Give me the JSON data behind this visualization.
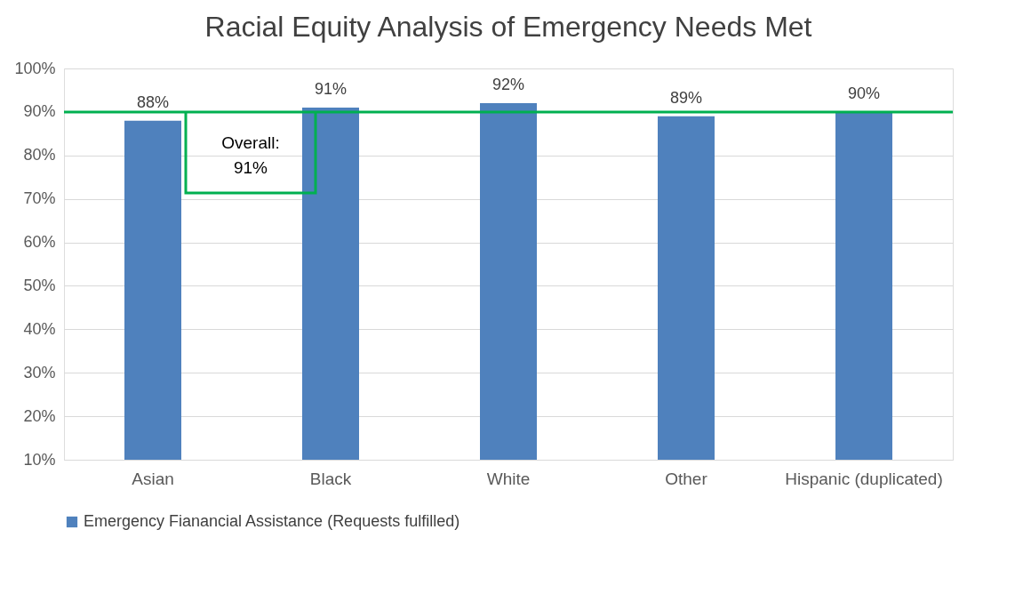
{
  "chart_data": {
    "type": "bar",
    "title": "Racial Equity Analysis of Emergency Needs Met",
    "categories": [
      "Asian",
      "Black",
      "White",
      "Other",
      "Hispanic (duplicated)"
    ],
    "series": [
      {
        "name": "Emergency Fianancial Assistance (Requests fulfilled)",
        "color": "#4f81bd",
        "values": [
          88,
          91,
          92,
          89,
          90
        ],
        "value_labels": [
          "88%",
          "91%",
          "92%",
          "89%",
          "90%"
        ]
      }
    ],
    "ylim": [
      10,
      100
    ],
    "yticks": [
      {
        "value": 10,
        "label": "10%"
      },
      {
        "value": 20,
        "label": "20%"
      },
      {
        "value": 30,
        "label": "30%"
      },
      {
        "value": 40,
        "label": "40%"
      },
      {
        "value": 50,
        "label": "50%"
      },
      {
        "value": 60,
        "label": "60%"
      },
      {
        "value": 70,
        "label": "70%"
      },
      {
        "value": 80,
        "label": "80%"
      },
      {
        "value": 90,
        "label": "90%"
      },
      {
        "value": 100,
        "label": "100%"
      }
    ],
    "ref_lines": [
      {
        "axis": "y",
        "value": 90,
        "color": "#00b050"
      }
    ],
    "annotations": [
      "Overall: 91%"
    ],
    "grid": "y",
    "legend": "bottom"
  }
}
